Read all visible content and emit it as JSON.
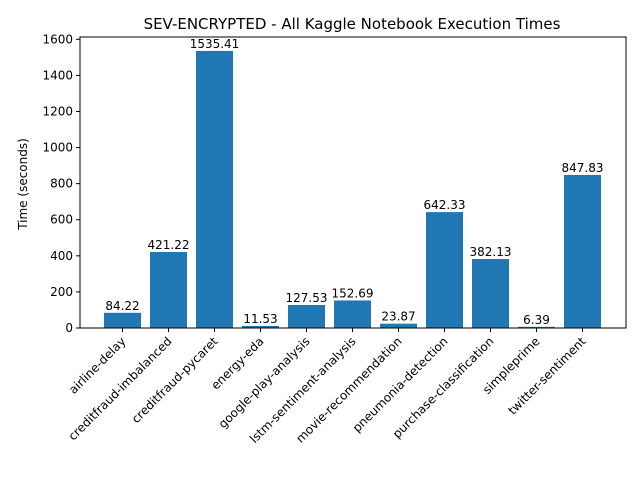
{
  "chart_data": {
    "type": "bar",
    "title": "SEV-ENCRYPTED - All Kaggle Notebook Execution Times",
    "xlabel": "",
    "ylabel": "Time (seconds)",
    "categories": [
      "airline-delay",
      "creditfraud-imbalanced",
      "creditfraud-pycaret",
      "energy-eda",
      "google-play-analysis",
      "lstm-sentiment-analysis",
      "movie-recommendation",
      "pneumonia-detection",
      "purchase-classification",
      "simpleprime",
      "twitter-sentiment"
    ],
    "values": [
      84.22,
      421.22,
      1535.41,
      11.53,
      127.53,
      152.69,
      23.87,
      642.33,
      382.13,
      6.39,
      847.83
    ],
    "data_labels": [
      "84.22",
      "421.22",
      "1535.41",
      "11.53",
      "127.53",
      "152.69",
      "23.87",
      "642.33",
      "382.13",
      "6.39",
      "847.83"
    ],
    "ylim": [
      0,
      1612.68
    ],
    "yticks": [
      0,
      200,
      400,
      600,
      800,
      1000,
      1200,
      1400,
      1600
    ],
    "grid": false,
    "bar_color": "#1f77b4"
  }
}
